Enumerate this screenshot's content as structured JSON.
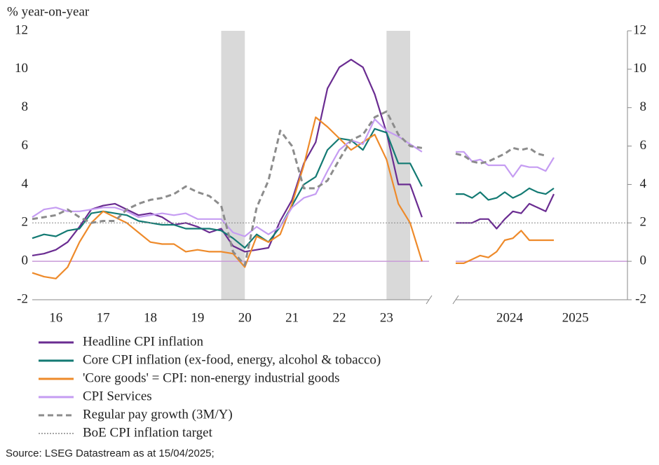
{
  "source": "Source: LSEG Datastream as at 15/04/2025;",
  "chart_data": [
    {
      "type": "line",
      "title": "% year-on-year",
      "x": [
        2016.0,
        2016.25,
        2016.5,
        2016.75,
        2017.0,
        2017.25,
        2017.5,
        2017.75,
        2018.0,
        2018.25,
        2018.5,
        2018.75,
        2019.0,
        2019.25,
        2019.5,
        2019.75,
        2020.0,
        2020.25,
        2020.5,
        2020.75,
        2021.0,
        2021.25,
        2021.5,
        2021.75,
        2022.0,
        2022.25,
        2022.5,
        2022.75,
        2023.0,
        2023.25,
        2023.5,
        2023.75,
        2024.0,
        2024.25
      ],
      "xlim": [
        2016.0,
        2024.4
      ],
      "xticks": [
        {
          "value": 2016.5,
          "label": "16"
        },
        {
          "value": 2017.5,
          "label": "17"
        },
        {
          "value": 2018.5,
          "label": "18"
        },
        {
          "value": 2019.5,
          "label": "19"
        },
        {
          "value": 2020.5,
          "label": "20"
        },
        {
          "value": 2021.5,
          "label": "21"
        },
        {
          "value": 2022.5,
          "label": "22"
        },
        {
          "value": 2023.5,
          "label": "23"
        }
      ],
      "ylim": [
        -2,
        12
      ],
      "yticks": [
        -2,
        0,
        2,
        4,
        6,
        8,
        10,
        12
      ],
      "shaded": [
        [
          2020.0,
          2020.5
        ],
        [
          2023.5,
          2024.0
        ]
      ],
      "target": {
        "name": "BoE CPI inflation target",
        "value": 2,
        "color": "#888888",
        "dash": "dotted"
      },
      "series": [
        {
          "name": "Headline CPI inflation",
          "color": "#6a2c91",
          "values": [
            0.3,
            0.4,
            0.6,
            1.0,
            1.8,
            2.7,
            2.9,
            3.0,
            2.7,
            2.4,
            2.5,
            2.3,
            1.9,
            2.0,
            1.8,
            1.5,
            1.7,
            0.8,
            0.5,
            0.6,
            0.7,
            2.1,
            3.2,
            5.1,
            6.2,
            9.0,
            10.1,
            10.5,
            10.1,
            8.7,
            6.7,
            4.0,
            4.0,
            2.3
          ]
        },
        {
          "name": "Core CPI inflation (ex-food, energy, alcohol & tobacco)",
          "color": "#137a73",
          "values": [
            1.2,
            1.4,
            1.3,
            1.6,
            1.7,
            2.5,
            2.6,
            2.5,
            2.4,
            2.1,
            2.0,
            1.9,
            1.9,
            1.7,
            1.7,
            1.7,
            1.6,
            1.2,
            0.7,
            1.4,
            1.0,
            1.8,
            2.9,
            4.0,
            4.4,
            5.8,
            6.4,
            6.3,
            5.8,
            6.9,
            6.7,
            5.1,
            5.1,
            3.9
          ]
        },
        {
          "name": "'Core goods' = CPI: non-energy industrial goods",
          "color": "#ee8a2a",
          "values": [
            -0.6,
            -0.8,
            -0.9,
            -0.3,
            1.0,
            2.0,
            2.6,
            2.3,
            2.0,
            1.5,
            1.0,
            0.9,
            0.9,
            0.5,
            0.6,
            0.5,
            0.5,
            0.4,
            -0.3,
            1.3,
            1.0,
            1.4,
            3.0,
            5.0,
            7.5,
            7.0,
            6.4,
            5.8,
            6.2,
            6.6,
            5.3,
            3.0,
            2.0,
            0.0
          ]
        },
        {
          "name": "CPI Services",
          "color": "#c59cf2",
          "values": [
            2.3,
            2.7,
            2.8,
            2.6,
            2.6,
            2.7,
            2.8,
            2.8,
            2.6,
            2.3,
            2.4,
            2.5,
            2.4,
            2.5,
            2.2,
            2.2,
            2.2,
            1.5,
            1.3,
            1.8,
            1.4,
            1.8,
            2.8,
            3.3,
            3.5,
            4.7,
            5.8,
            6.3,
            6.1,
            7.4,
            6.8,
            6.5,
            6.1,
            5.7
          ]
        },
        {
          "name": "Regular pay growth (3M/Y)",
          "color": "#8c8c8c",
          "dash": "dashed",
          "values": [
            2.2,
            2.3,
            2.4,
            2.7,
            2.3,
            2.0,
            2.1,
            2.1,
            2.7,
            3.0,
            3.2,
            3.3,
            3.5,
            3.9,
            3.6,
            3.4,
            2.9,
            0.5,
            -0.2,
            2.8,
            4.2,
            6.8,
            6.0,
            3.8,
            3.8,
            4.2,
            5.3,
            6.3,
            6.6,
            7.5,
            7.8,
            6.6,
            6.0,
            5.9
          ]
        }
      ]
    },
    {
      "type": "line",
      "x": [
        2024.0,
        2024.083,
        2024.167,
        2024.25,
        2024.333,
        2024.417,
        2024.5,
        2024.583,
        2024.667,
        2024.75,
        2024.833,
        2024.917,
        2025.0
      ],
      "xlim": [
        2024.0,
        2025.75
      ],
      "xticks": [
        {
          "value": 2024.55,
          "label": "2024"
        },
        {
          "value": 2025.22,
          "label": "2025"
        }
      ],
      "ylim": [
        -2,
        12
      ],
      "yticks": [
        -2,
        0,
        2,
        4,
        6,
        8,
        10,
        12
      ],
      "series": [
        {
          "color": "#6a2c91",
          "values": [
            2.0,
            2.0,
            2.0,
            2.2,
            2.2,
            1.7,
            2.2,
            2.6,
            2.5,
            3.0,
            2.8,
            2.6,
            3.5
          ]
        },
        {
          "color": "#137a73",
          "values": [
            3.5,
            3.5,
            3.3,
            3.6,
            3.2,
            3.3,
            3.6,
            3.3,
            3.5,
            3.8,
            3.6,
            3.5,
            3.8
          ]
        },
        {
          "color": "#ee8a2a",
          "values": [
            -0.1,
            -0.1,
            0.1,
            0.3,
            0.2,
            0.5,
            1.1,
            1.2,
            1.6,
            1.1,
            1.1,
            1.1,
            1.1
          ]
        },
        {
          "color": "#c59cf2",
          "values": [
            5.7,
            5.7,
            5.2,
            5.3,
            5.0,
            5.0,
            5.0,
            4.4,
            5.0,
            4.9,
            4.9,
            4.7,
            5.4
          ]
        },
        {
          "color": "#8c8c8c",
          "dash": "dashed",
          "values": [
            5.6,
            5.5,
            5.2,
            5.1,
            5.2,
            5.4,
            5.6,
            5.9,
            5.8,
            5.9,
            5.6,
            5.5,
            null
          ]
        }
      ]
    }
  ]
}
